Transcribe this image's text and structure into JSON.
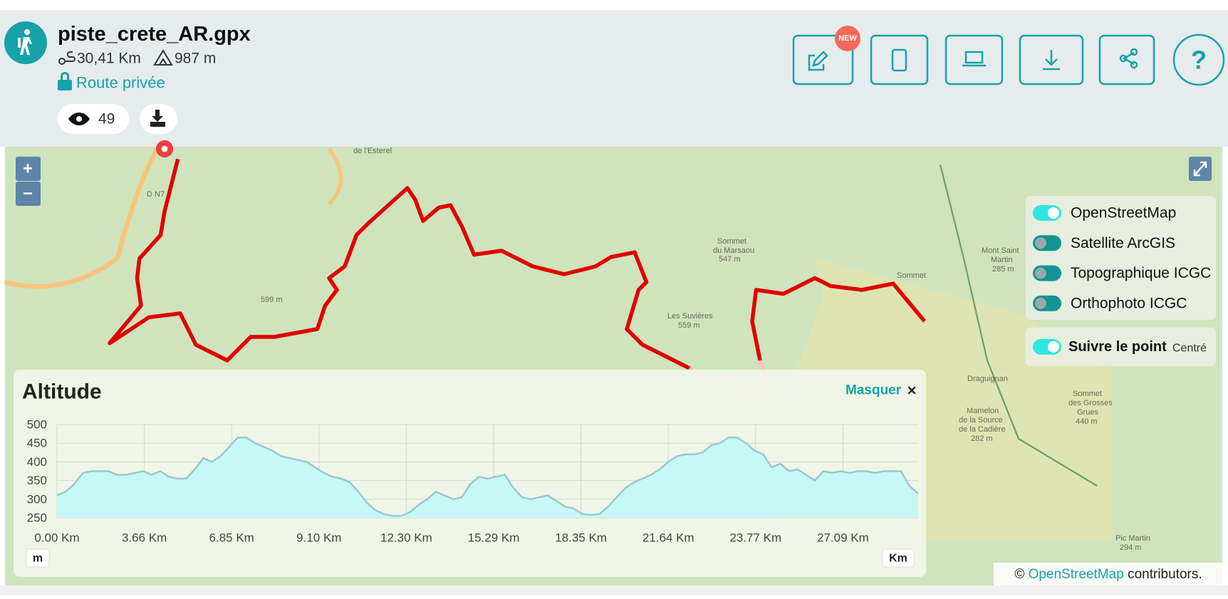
{
  "header": {
    "title": "piste_crete_AR.gpx",
    "distance": "30,41 Km",
    "elevation": "987 m",
    "privacy": "Route privée",
    "views": 49
  },
  "toolbar": {
    "badge": "NEW",
    "help": "?"
  },
  "map": {
    "zoom_in": "+",
    "zoom_out": "−",
    "labels": [
      "de l'Esterel",
      "D N7",
      "599 m",
      "Sommet",
      "du Marsaou",
      "547 m",
      "Les Suvières",
      "559 m",
      "Sommet",
      "Mont Saint",
      "Martin",
      "285 m",
      "Draguignan",
      "Mamelon",
      "de la Source",
      "de la Cadière",
      "282 m",
      "Sommet",
      "des Grosses",
      "Grues",
      "440 m",
      "Pic Martin",
      "294 m"
    ],
    "layers": [
      {
        "name": "OpenStreetMap",
        "on": true
      },
      {
        "name": "Satellite ArcGIS",
        "on": false
      },
      {
        "name": "Topographique ICGC",
        "on": false
      },
      {
        "name": "Orthophoto ICGC",
        "on": false
      }
    ],
    "follow": {
      "name": "Suivre le point",
      "on": true,
      "mode": "Centré"
    },
    "attribution": {
      "prefix": "©",
      "link": "OpenStreetMap",
      "suffix": "contributors."
    }
  },
  "chart_data": {
    "type": "area",
    "title": "Altitude",
    "hide": "Masquer",
    "close": "×",
    "xtick_labels": [
      "0.00 Km",
      "3.66 Km",
      "6.85 Km",
      "9.10 Km",
      "12.30 Km",
      "15.29 Km",
      "18.35 Km",
      "21.64 Km",
      "23.77 Km",
      "27.09 Km"
    ],
    "values": [
      310,
      320,
      340,
      370,
      375,
      375,
      375,
      365,
      365,
      370,
      375,
      365,
      375,
      360,
      355,
      355,
      380,
      410,
      400,
      415,
      440,
      465,
      465,
      450,
      440,
      430,
      415,
      410,
      405,
      400,
      385,
      370,
      360,
      355,
      345,
      320,
      290,
      270,
      260,
      255,
      255,
      265,
      285,
      300,
      320,
      310,
      300,
      305,
      340,
      360,
      355,
      360,
      365,
      330,
      305,
      300,
      305,
      310,
      295,
      280,
      275,
      260,
      258,
      260,
      280,
      305,
      330,
      345,
      355,
      365,
      380,
      400,
      415,
      420,
      420,
      425,
      445,
      450,
      465,
      465,
      450,
      430,
      420,
      385,
      395,
      375,
      380,
      365,
      350,
      375,
      370,
      375,
      370,
      375,
      375,
      370,
      375,
      375,
      375,
      335,
      315
    ],
    "ylim": [
      250,
      500
    ],
    "yticks": [
      250,
      300,
      350,
      400,
      450,
      500
    ],
    "y_unit": "m",
    "x_unit": "Km",
    "color": "#c6f8f8",
    "line_color": "#9cc7cc",
    "grid": true
  }
}
